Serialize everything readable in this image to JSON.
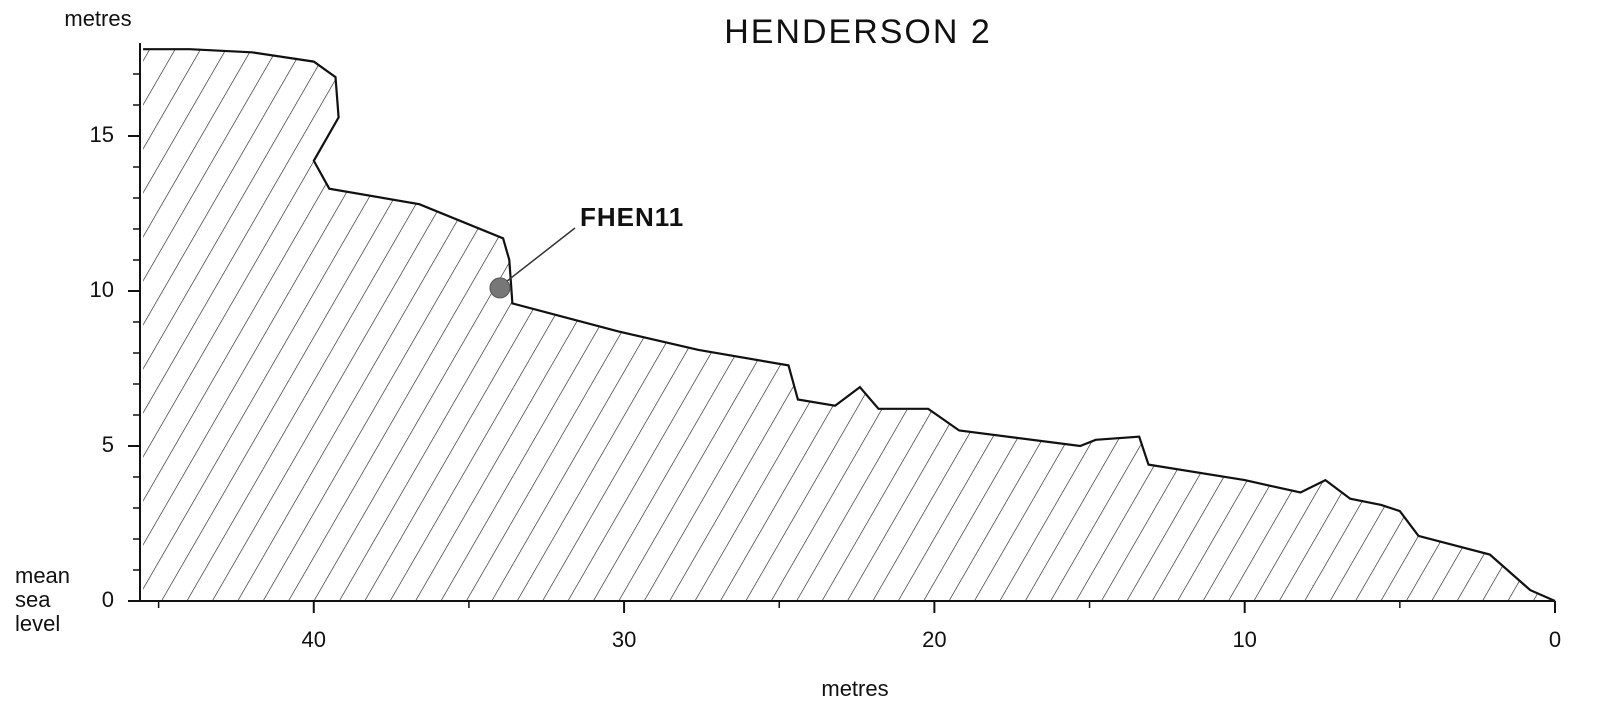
{
  "chart_data": {
    "type": "area",
    "title": "HENDERSON  2",
    "y_label": "metres",
    "x_label": "metres",
    "zero_label_lines": [
      "mean",
      "sea",
      "level"
    ],
    "xlim": [
      45.6,
      0
    ],
    "ylim": [
      0,
      18
    ],
    "xticks": [
      0,
      10,
      20,
      30,
      40
    ],
    "yticks": [
      0,
      5,
      10,
      15
    ],
    "xminor": [
      5,
      15,
      25,
      35,
      45
    ],
    "yminor": [
      1,
      2,
      3,
      4,
      6,
      7,
      8,
      9,
      11,
      12,
      13,
      14,
      16,
      17
    ],
    "series": [
      {
        "color": "#111111",
        "x": [
          45.5,
          44,
          42,
          40,
          39.3,
          39.2,
          40.0,
          39.5,
          36.6,
          33.9,
          33.7,
          33.6,
          30.2,
          27.6,
          24.7,
          24.4,
          23.2,
          22.4,
          21.8,
          20.2,
          19.2,
          15.3,
          14.8,
          13.4,
          13.1,
          10,
          8.2,
          7.4,
          6.6,
          5.6,
          5,
          4.4,
          2.1,
          0.8,
          0
        ],
        "values": [
          17.8,
          17.8,
          17.7,
          17.4,
          16.9,
          15.6,
          14.2,
          13.3,
          12.8,
          11.7,
          11.0,
          9.6,
          8.7,
          8.1,
          7.6,
          6.5,
          6.3,
          6.9,
          6.2,
          6.2,
          5.5,
          5.0,
          5.2,
          5.3,
          4.4,
          3.9,
          3.5,
          3.9,
          3.3,
          3.1,
          2.9,
          2.1,
          1.5,
          0.35,
          0
        ]
      }
    ],
    "annotation": {
      "label": "FHEN11",
      "x": 34.0,
      "y": 10.1
    }
  }
}
